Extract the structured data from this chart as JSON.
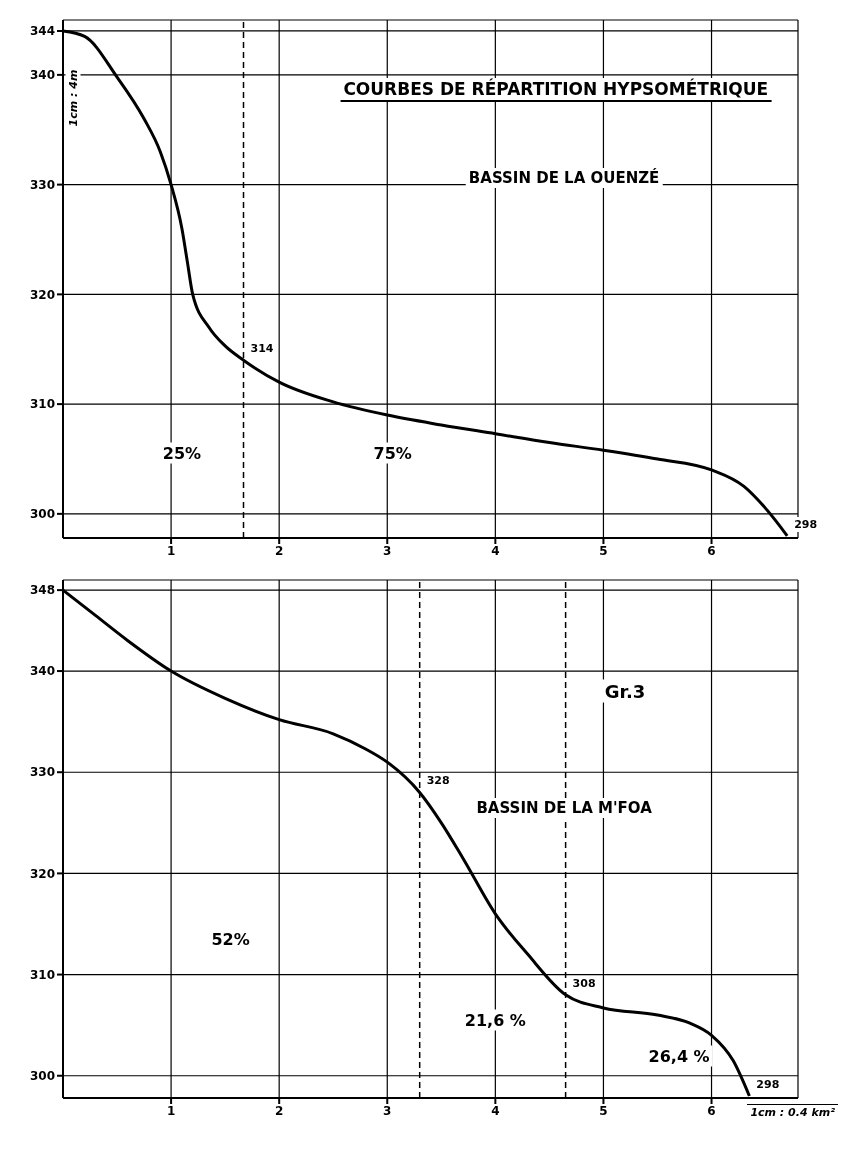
{
  "chart_data": [
    {
      "type": "line",
      "title": "COURBES DE RÉPARTITION HYPSOMÉTRIQUE",
      "subtitle": "BASSIN DE LA OUENZÉ",
      "ylabel": "1cm : 4m",
      "x": [
        0,
        0.2,
        0.5,
        0.75,
        0.9,
        1.0,
        1.1,
        1.15,
        1.2,
        1.35,
        1.5,
        1.67,
        2,
        2.5,
        3,
        3.5,
        4,
        4.5,
        5,
        5.5,
        6,
        6.3,
        6.5,
        6.7
      ],
      "series": [
        {
          "color": "#000000",
          "values": [
            344,
            343.5,
            339.8,
            336,
            333,
            330,
            326,
            323,
            320,
            317,
            315.3,
            314,
            312,
            310.2,
            309,
            308.1,
            307.3,
            306.5,
            305.8,
            305,
            304,
            302.5,
            300.5,
            298
          ]
        }
      ],
      "xlim": [
        0,
        6.8
      ],
      "xticks": [
        1,
        2,
        3,
        4,
        5,
        6
      ],
      "ylim": [
        297.8,
        345
      ],
      "yticks": [
        300,
        310,
        320,
        330,
        340,
        344
      ],
      "grid": true,
      "marker": "none",
      "line_style": "solid",
      "ref_lines": [
        {
          "axis": "x",
          "value": 1.67,
          "line_style": "dashed"
        }
      ],
      "annotations": [
        {
          "text": "314",
          "x": 1.67,
          "y": 314
        },
        {
          "text": "298",
          "x": 6.7,
          "y": 298
        },
        "25%",
        "75%"
      ]
    },
    {
      "type": "line",
      "subtitle": "BASSIN DE LA M'FOA",
      "xlabel": "1cm : 0.4 km²",
      "x": [
        0,
        0.3,
        0.6,
        1,
        1.5,
        2,
        2.5,
        2.8,
        3,
        3.3,
        3.5,
        3.7,
        4,
        4.3,
        4.65,
        5,
        5.5,
        5.8,
        6,
        6.2,
        6.35
      ],
      "series": [
        {
          "color": "#000000",
          "values": [
            348,
            345.5,
            343,
            340,
            337.3,
            335.2,
            333.8,
            332.3,
            331,
            328,
            325,
            321.5,
            316,
            312,
            308,
            306.7,
            306,
            305.2,
            304,
            301.5,
            298
          ]
        }
      ],
      "xlim": [
        0,
        6.8
      ],
      "xticks": [
        1,
        2,
        3,
        4,
        5,
        6
      ],
      "ylim": [
        297.8,
        349
      ],
      "yticks": [
        300,
        310,
        320,
        330,
        340,
        348
      ],
      "grid": true,
      "marker": "none",
      "line_style": "solid",
      "ref_lines": [
        {
          "axis": "x",
          "value": 3.3,
          "line_style": "dashed"
        },
        {
          "axis": "x",
          "value": 4.65,
          "line_style": "dashed"
        }
      ],
      "annotations": [
        "Gr.3",
        {
          "text": "328",
          "x": 3.3,
          "y": 328
        },
        {
          "text": "308",
          "x": 4.65,
          "y": 308
        },
        {
          "text": "298",
          "x": 6.35,
          "y": 298
        },
        "52%",
        "21,6 %",
        "26,4 %"
      ]
    }
  ]
}
